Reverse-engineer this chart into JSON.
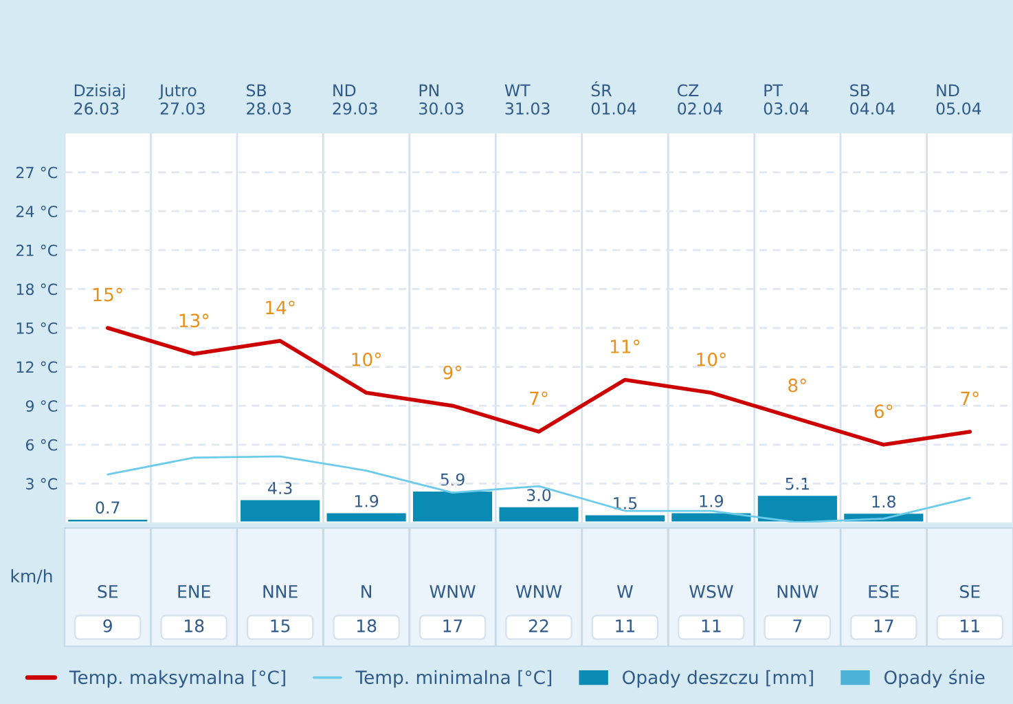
{
  "chart_data": [
    {
      "type": "line",
      "categories": [
        "Dzisiaj\n26.03",
        "Jutro\n27.03",
        "SB\n28.03",
        "ND\n29.03",
        "PN\n30.03",
        "WT\n31.03",
        "ŚR\n01.04",
        "CZ\n02.04",
        "PT\n03.04",
        "SB\n04.04",
        "ND\n05.04"
      ],
      "series": [
        {
          "name": "Temp. maksymalna [°C]",
          "type": "line",
          "color": "#cc0000",
          "values": [
            15,
            13,
            14,
            10,
            9,
            7,
            11,
            10,
            8,
            6,
            7
          ],
          "value_labels": [
            "15°",
            "13°",
            "14°",
            "10°",
            "9°",
            "7°",
            "11°",
            "10°",
            "8°",
            "6°",
            "7°"
          ]
        },
        {
          "name": "Temp. minimalna [°C]",
          "type": "line",
          "color": "#6ccbea",
          "values": [
            3.7,
            5.0,
            5.1,
            4.0,
            2.3,
            2.8,
            0.9,
            0.9,
            0.0,
            0.3,
            1.9
          ]
        },
        {
          "name": "Opady deszczu [mm]",
          "type": "bar",
          "axis": "y2",
          "color": "#0a8bb3",
          "values": [
            0.7,
            null,
            4.3,
            1.9,
            5.9,
            3.0,
            1.5,
            1.9,
            5.1,
            1.8,
            null
          ],
          "value_labels": [
            "0.7",
            null,
            "4.3",
            "1.9",
            "5.9",
            "3.0",
            "1.5",
            "1.9",
            "5.1",
            "1.8",
            null
          ]
        },
        {
          "name": "Opady śnie",
          "type": "bar",
          "axis": "y2",
          "color": "#4db3d6",
          "values": [
            null,
            null,
            null,
            null,
            null,
            null,
            null,
            null,
            null,
            null,
            null
          ]
        }
      ],
      "ylim": [
        0,
        30
      ],
      "yticks": [
        {
          "value": 3,
          "label": "3 °C"
        },
        {
          "value": 6,
          "label": "6 °C"
        },
        {
          "value": 9,
          "label": "9 °C"
        },
        {
          "value": 12,
          "label": "12 °C"
        },
        {
          "value": 15,
          "label": "15 °C"
        },
        {
          "value": 18,
          "label": "18 °C"
        },
        {
          "value": 21,
          "label": "21 °C"
        },
        {
          "value": 24,
          "label": "24 °C"
        },
        {
          "value": 27,
          "label": "27 °C"
        }
      ],
      "y2lim": [
        0,
        72
      ],
      "grid": "y",
      "legend": "bottom"
    },
    {
      "type": "other",
      "ylabel": "km/h",
      "categories": [
        "SE",
        "ENE",
        "NNE",
        "N",
        "WNW",
        "WNW",
        "W",
        "WSW",
        "NNW",
        "ESE",
        "SE"
      ],
      "values": [
        9,
        18,
        15,
        18,
        17,
        22,
        11,
        11,
        7,
        17,
        11
      ],
      "data_labels": true
    }
  ]
}
